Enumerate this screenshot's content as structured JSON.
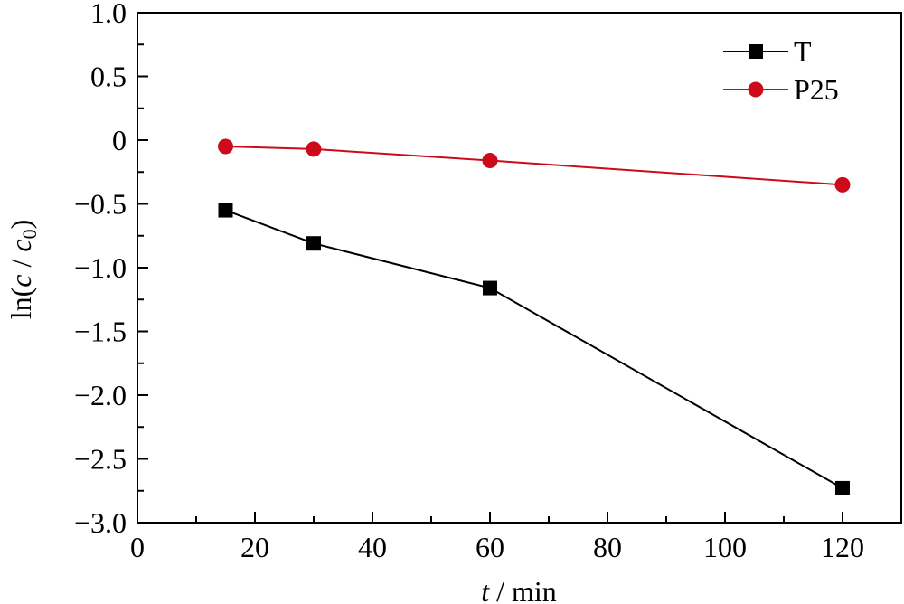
{
  "chart_data": {
    "type": "line",
    "x": [
      15,
      30,
      60,
      120
    ],
    "series": [
      {
        "name": "T",
        "values": [
          -0.55,
          -0.81,
          -1.16,
          -2.73
        ],
        "color": "#000000",
        "marker": "square"
      },
      {
        "name": "P25",
        "values": [
          -0.05,
          -0.07,
          -0.16,
          -0.35
        ],
        "color": "#cc0a1c",
        "marker": "circle"
      }
    ],
    "xlabel": {
      "var": "t",
      "rest": " / min"
    },
    "ylabel": {
      "prefix": "ln(",
      "c": "c",
      "slash": " / ",
      "c0": "c",
      "sub": "0",
      "suffix": ")"
    },
    "xlim": [
      0,
      130
    ],
    "ylim": [
      -3.0,
      1.0
    ],
    "xticks": [
      0,
      20,
      40,
      60,
      80,
      100,
      120
    ],
    "xtick_labels": [
      "0",
      "20",
      "40",
      "60",
      "80",
      "100",
      "120"
    ],
    "yticks": [
      1.0,
      0.5,
      0,
      -0.5,
      -1.0,
      -1.5,
      -2.0,
      -2.5,
      -3.0
    ],
    "ytick_labels": [
      "1.0",
      "0.5",
      "0",
      "−0.5",
      "−1.0",
      "−1.5",
      "−2.0",
      "−2.5",
      "−3.0"
    ],
    "grid": false,
    "legend_position": "top-right"
  }
}
